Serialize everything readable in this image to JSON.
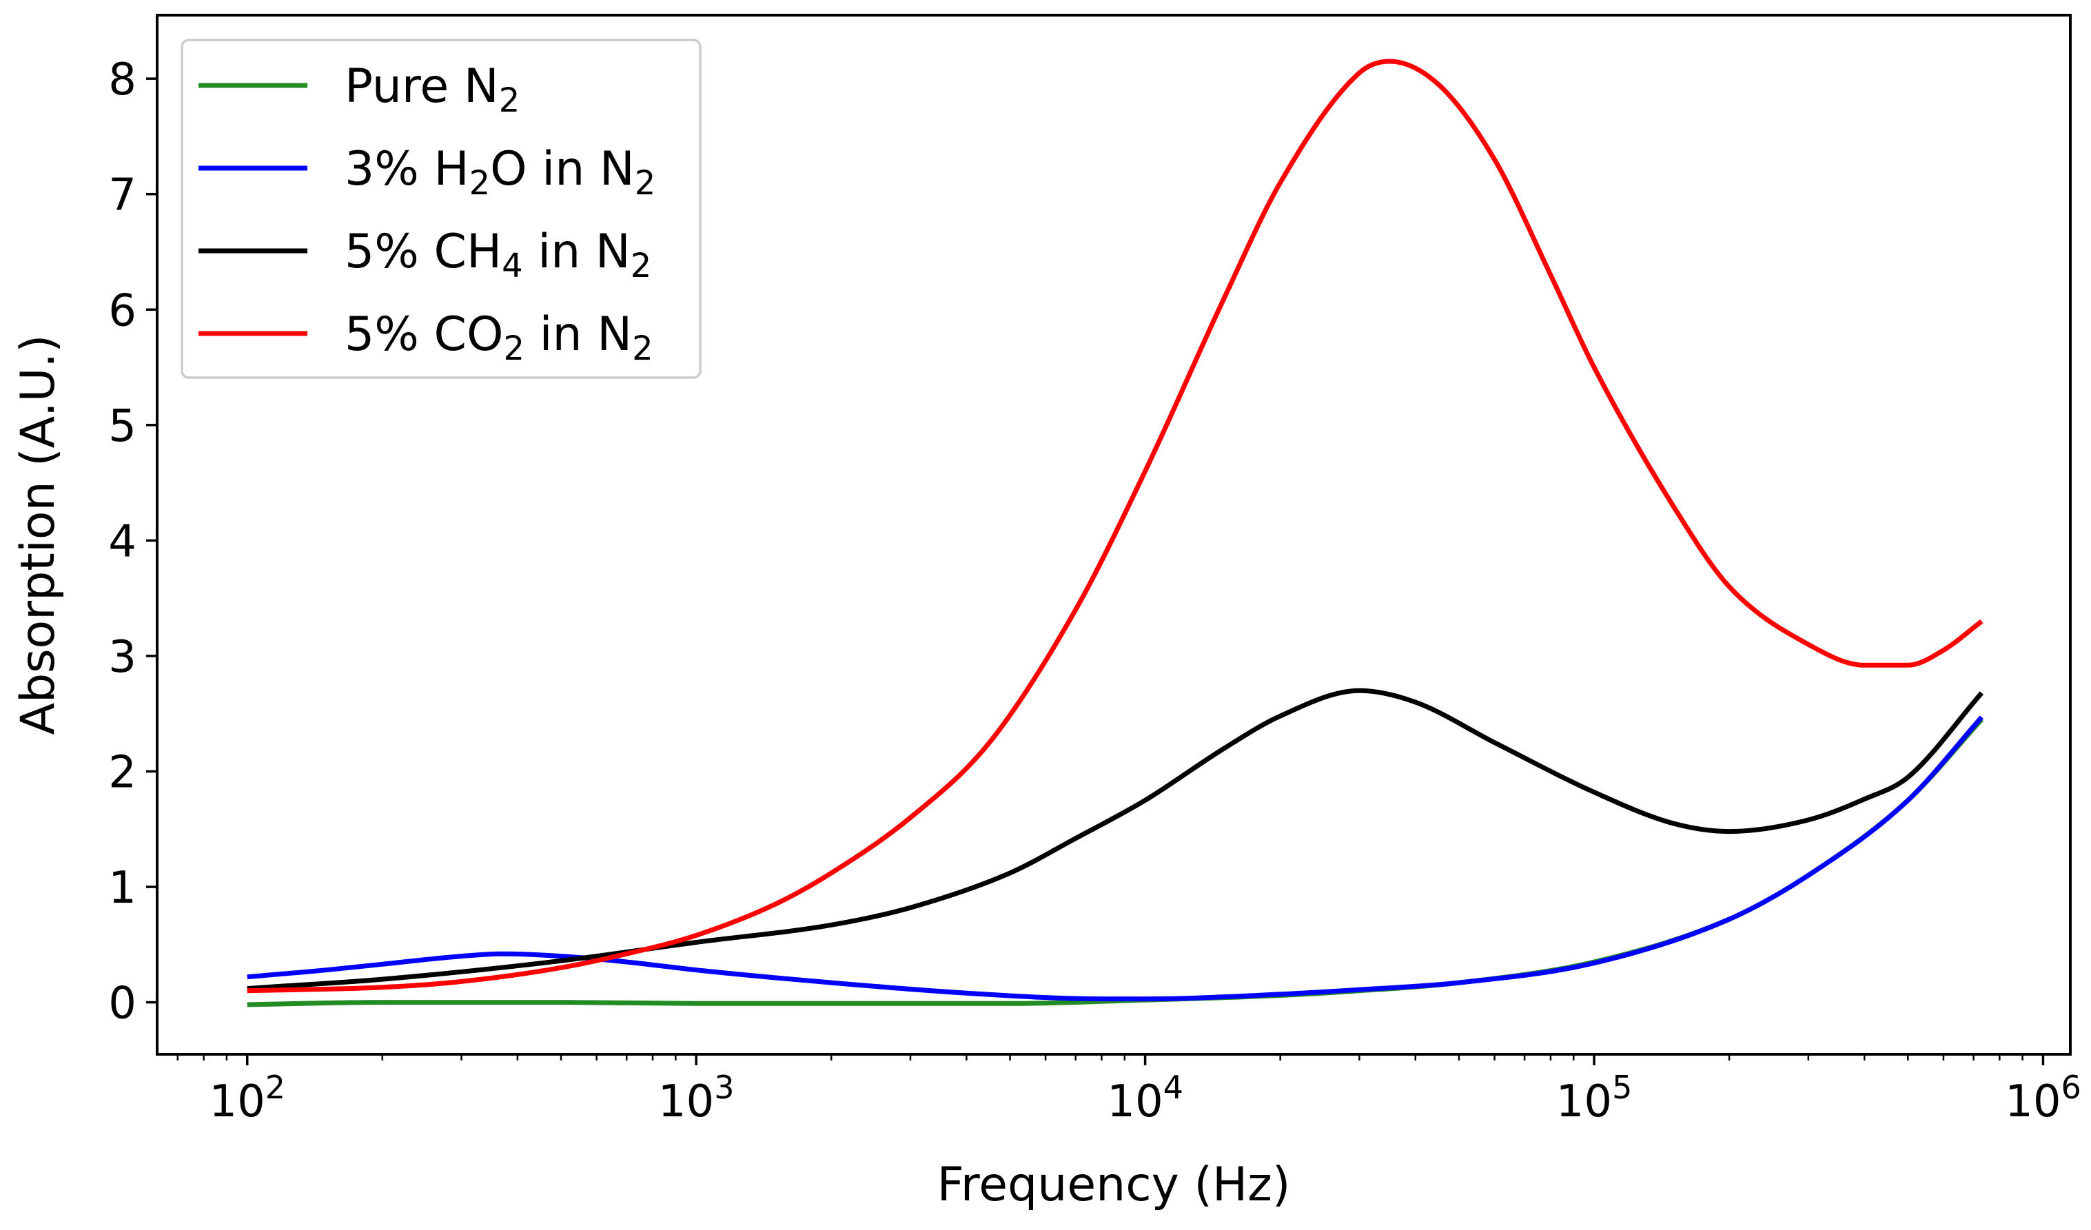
{
  "chart_data": {
    "type": "line",
    "title": "",
    "xlabel": "Frequency (Hz)",
    "ylabel": "Absorption (A.U.)",
    "xscale": "log",
    "xlim": [
      63,
      1150000
    ],
    "ylim": [
      -0.45,
      8.55
    ],
    "x_ticks": [
      {
        "value": 100,
        "base": "10",
        "exp": "2"
      },
      {
        "value": 1000,
        "base": "10",
        "exp": "3"
      },
      {
        "value": 10000,
        "base": "10",
        "exp": "4"
      },
      {
        "value": 100000,
        "base": "10",
        "exp": "5"
      },
      {
        "value": 1000000,
        "base": "10",
        "exp": "6"
      }
    ],
    "y_ticks": [
      "0",
      "1",
      "2",
      "3",
      "4",
      "5",
      "6",
      "7",
      "8"
    ],
    "grid": false,
    "legend_position": "top-left",
    "series": [
      {
        "name": "Pure N2",
        "label_parts": [
          {
            "t": "Pure N"
          },
          {
            "t": "2",
            "sub": true
          }
        ],
        "color": "#228B22",
        "x": [
          100,
          200,
          500,
          1000,
          2000,
          5000,
          10000,
          20000,
          30000,
          50000,
          100000,
          200000,
          300000,
          500000,
          730000
        ],
        "y": [
          -0.02,
          0.0,
          0.0,
          -0.01,
          -0.01,
          -0.01,
          0.02,
          0.06,
          0.1,
          0.17,
          0.35,
          0.72,
          1.1,
          1.75,
          2.45
        ]
      },
      {
        "name": "3% H2O in N2",
        "label_parts": [
          {
            "t": "3% H"
          },
          {
            "t": "2",
            "sub": true
          },
          {
            "t": "O in N"
          },
          {
            "t": "2",
            "sub": true
          }
        ],
        "color": "#0000FF",
        "x": [
          100,
          150,
          200,
          300,
          370,
          500,
          700,
          1000,
          2000,
          4000,
          8000,
          10000,
          20000,
          30000,
          50000,
          100000,
          200000,
          300000,
          500000,
          730000
        ],
        "y": [
          0.22,
          0.28,
          0.33,
          0.4,
          0.42,
          0.4,
          0.35,
          0.28,
          0.17,
          0.08,
          0.03,
          0.03,
          0.07,
          0.11,
          0.17,
          0.34,
          0.72,
          1.1,
          1.75,
          2.47
        ]
      },
      {
        "name": "5% CH4 in N2",
        "label_parts": [
          {
            "t": "5% CH"
          },
          {
            "t": "4",
            "sub": true
          },
          {
            "t": " in N"
          },
          {
            "t": "2",
            "sub": true
          }
        ],
        "color": "#000000",
        "x": [
          100,
          200,
          500,
          1000,
          2000,
          3000,
          5000,
          7000,
          10000,
          15000,
          20000,
          30000,
          40000,
          60000,
          100000,
          150000,
          200000,
          300000,
          400000,
          500000,
          730000
        ],
        "y": [
          0.12,
          0.2,
          0.36,
          0.52,
          0.67,
          0.82,
          1.12,
          1.42,
          1.75,
          2.2,
          2.48,
          2.7,
          2.6,
          2.25,
          1.82,
          1.55,
          1.48,
          1.58,
          1.76,
          1.95,
          2.68
        ]
      },
      {
        "name": "5% CO2 in N2",
        "label_parts": [
          {
            "t": "5% CO"
          },
          {
            "t": "2",
            "sub": true
          },
          {
            "t": " in N"
          },
          {
            "t": "2",
            "sub": true
          }
        ],
        "color": "#FF0000",
        "x": [
          100,
          200,
          300,
          500,
          700,
          1000,
          1500,
          2000,
          3000,
          4500,
          7000,
          10000,
          15000,
          20000,
          30000,
          35000,
          45000,
          60000,
          80000,
          100000,
          150000,
          200000,
          300000,
          400000,
          500000,
          600000,
          730000
        ],
        "y": [
          0.1,
          0.13,
          0.18,
          0.3,
          0.42,
          0.58,
          0.85,
          1.12,
          1.6,
          2.25,
          3.4,
          4.6,
          6.1,
          7.1,
          8.05,
          8.15,
          7.95,
          7.3,
          6.3,
          5.5,
          4.3,
          3.6,
          3.1,
          2.92,
          2.92,
          3.05,
          3.3
        ]
      }
    ]
  }
}
